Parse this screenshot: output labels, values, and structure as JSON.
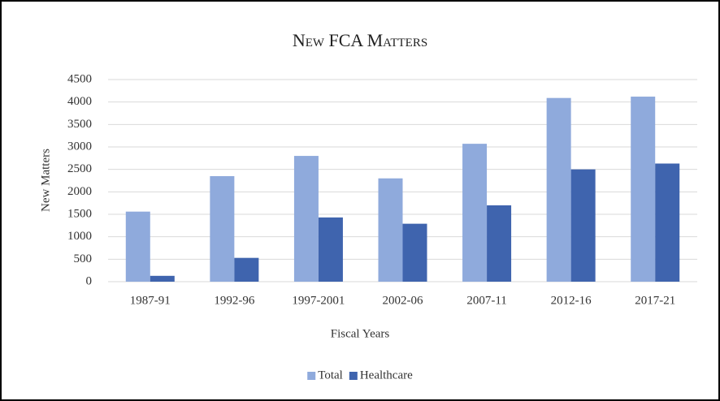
{
  "chart_data": {
    "type": "bar",
    "title": "New FCA Matters",
    "x_label": "Fiscal Years",
    "y_label": "New Matters",
    "categories": [
      "1987-91",
      "1992-96",
      "1997-2001",
      "2002-06",
      "2007-11",
      "2012-16",
      "2017-21"
    ],
    "series": [
      {
        "name": "Total",
        "color": "#8faadc",
        "values": [
          1560,
          2350,
          2800,
          2300,
          3070,
          4090,
          4120
        ]
      },
      {
        "name": "Healthcare",
        "color": "#3f64ae",
        "values": [
          130,
          530,
          1430,
          1290,
          1700,
          2500,
          2630
        ]
      }
    ],
    "ylim": [
      0,
      4500
    ],
    "yticks": [
      0,
      500,
      1000,
      1500,
      2000,
      2500,
      3000,
      3500,
      4000,
      4500
    ],
    "grid": true,
    "legend": "bottom"
  }
}
